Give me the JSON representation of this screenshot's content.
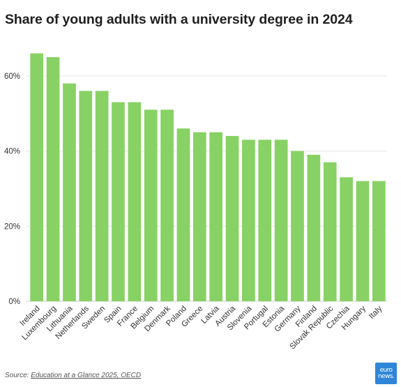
{
  "title": "Share of young adults with a university degree in 2024",
  "source": {
    "prefix": "Source: ",
    "link_text": "Education at a Glance 2025, OECD"
  },
  "logo": {
    "line1": "euro",
    "line2": "news."
  },
  "colors": {
    "bar": "#88d164",
    "grid": "#e6e6e6",
    "axis": "#cccccc",
    "logo": "#2f86d8"
  },
  "chart_data": {
    "type": "bar",
    "title": "Share of young adults with a university degree in 2024",
    "xlabel": "",
    "ylabel": "",
    "ylim": [
      0,
      70
    ],
    "yticks": [
      0,
      20,
      40,
      60
    ],
    "ytick_labels": [
      "0%",
      "20%",
      "40%",
      "60%"
    ],
    "grid": true,
    "categories": [
      "Ireland",
      "Luxembourg",
      "Lithuania",
      "Netherlands",
      "Sweden",
      "Spain",
      "France",
      "Belgium",
      "Denmark",
      "Poland",
      "Greece",
      "Latvia",
      "Austria",
      "Slovenia",
      "Portugal",
      "Estonia",
      "Germany",
      "Finland",
      "Slovak Republic",
      "Czechia",
      "Hungary",
      "Italy"
    ],
    "values": [
      66,
      65,
      58,
      56,
      56,
      53,
      53,
      51,
      51,
      46,
      45,
      45,
      44,
      43,
      43,
      43,
      40,
      39,
      37,
      33,
      32,
      32
    ]
  }
}
